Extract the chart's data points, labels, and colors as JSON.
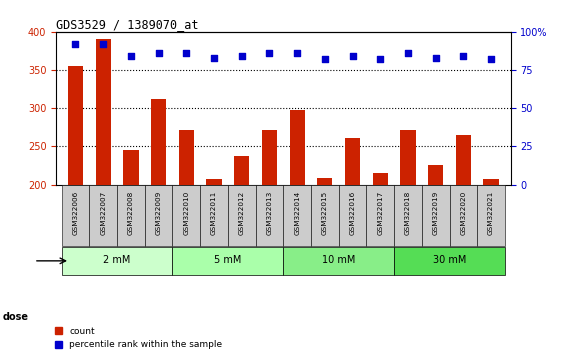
{
  "title": "GDS3529 / 1389070_at",
  "samples": [
    "GSM322006",
    "GSM322007",
    "GSM322008",
    "GSM322009",
    "GSM322010",
    "GSM322011",
    "GSM322012",
    "GSM322013",
    "GSM322014",
    "GSM322015",
    "GSM322016",
    "GSM322017",
    "GSM322018",
    "GSM322019",
    "GSM322020",
    "GSM322021"
  ],
  "bar_values": [
    355,
    390,
    245,
    312,
    272,
    207,
    238,
    272,
    297,
    208,
    261,
    215,
    272,
    226,
    265,
    207
  ],
  "percentile_values": [
    92,
    92,
    84,
    86,
    86,
    83,
    84,
    86,
    86,
    82,
    84,
    82,
    86,
    83,
    84,
    82
  ],
  "bar_color": "#cc2200",
  "dot_color": "#0000cc",
  "bar_bottom": 200,
  "ylim_left": [
    200,
    400
  ],
  "ylim_right": [
    0,
    100
  ],
  "yticks_left": [
    200,
    250,
    300,
    350,
    400
  ],
  "yticks_right": [
    0,
    25,
    50,
    75,
    100
  ],
  "yticklabels_right": [
    "0",
    "25",
    "50",
    "75",
    "100%"
  ],
  "dose_groups": [
    {
      "label": "2 mM",
      "indices": [
        0,
        1,
        2,
        3
      ],
      "color": "#ccffcc"
    },
    {
      "label": "5 mM",
      "indices": [
        4,
        5,
        6,
        7
      ],
      "color": "#aaffaa"
    },
    {
      "label": "10 mM",
      "indices": [
        8,
        9,
        10,
        11
      ],
      "color": "#88ee88"
    },
    {
      "label": "30 mM",
      "indices": [
        12,
        13,
        14,
        15
      ],
      "color": "#55dd55"
    }
  ],
  "dose_label": "dose",
  "legend_count_label": "count",
  "legend_pct_label": "percentile rank within the sample",
  "bg_color": "#ffffff",
  "plot_bg_color": "#ffffff",
  "tick_label_color_left": "#cc2200",
  "tick_label_color_right": "#0000cc",
  "grid_color": "#000000",
  "xtick_bg": "#cccccc",
  "grid_dotted_values": [
    250,
    300,
    350
  ]
}
